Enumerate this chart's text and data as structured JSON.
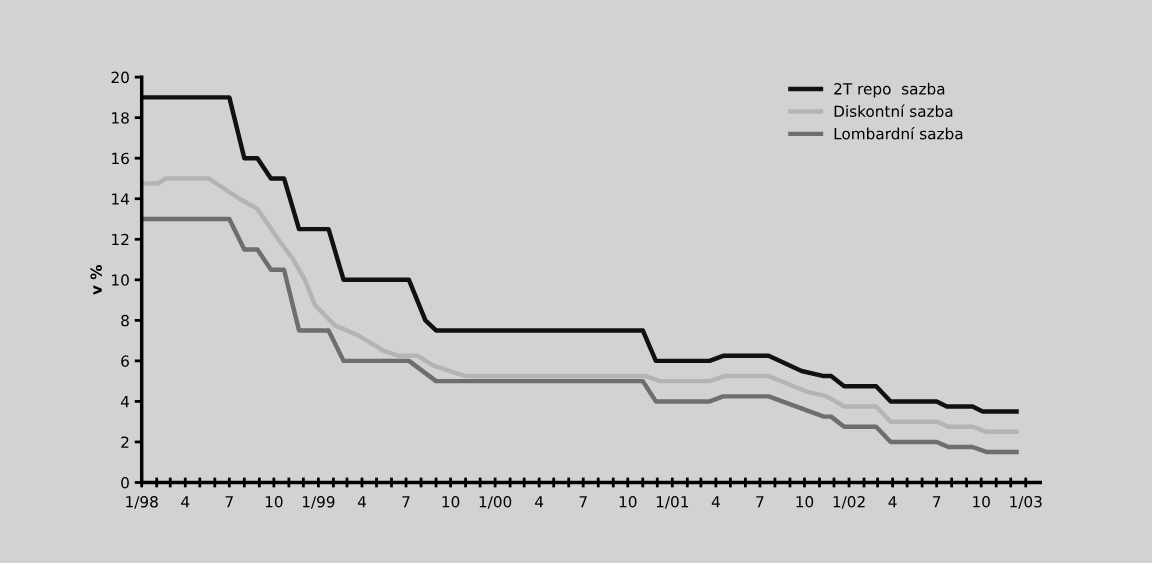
{
  "chart_data": {
    "type": "line",
    "ylabel": "v %",
    "xlim": [
      "1998-01-01",
      "2003-01-31"
    ],
    "ylim": [
      0,
      20
    ],
    "yticks": [
      0,
      2,
      4,
      6,
      8,
      10,
      12,
      14,
      16,
      18,
      20
    ],
    "xticks": [
      {
        "value": "1998-01",
        "label": "1/98"
      },
      {
        "value": "1998-02",
        "label": null
      },
      {
        "value": "1998-03",
        "label": null
      },
      {
        "value": "1998-04",
        "label": "4"
      },
      {
        "value": "1998-05",
        "label": null
      },
      {
        "value": "1998-06",
        "label": null
      },
      {
        "value": "1998-07",
        "label": "7"
      },
      {
        "value": "1998-08",
        "label": null
      },
      {
        "value": "1998-09",
        "label": null
      },
      {
        "value": "1998-10",
        "label": "10"
      },
      {
        "value": "1998-11",
        "label": null
      },
      {
        "value": "1998-12",
        "label": null
      },
      {
        "value": "1999-01",
        "label": "1/99"
      },
      {
        "value": "1999-02",
        "label": null
      },
      {
        "value": "1999-03",
        "label": null
      },
      {
        "value": "1999-04",
        "label": "4"
      },
      {
        "value": "1999-05",
        "label": null
      },
      {
        "value": "1999-06",
        "label": null
      },
      {
        "value": "1999-07",
        "label": "7"
      },
      {
        "value": "1999-08",
        "label": null
      },
      {
        "value": "1999-09",
        "label": null
      },
      {
        "value": "1999-10",
        "label": "10"
      },
      {
        "value": "1999-11",
        "label": null
      },
      {
        "value": "1999-12",
        "label": null
      },
      {
        "value": "2000-01",
        "label": "1/00"
      },
      {
        "value": "2000-02",
        "label": null
      },
      {
        "value": "2000-03",
        "label": null
      },
      {
        "value": "2000-04",
        "label": "4"
      },
      {
        "value": "2000-05",
        "label": null
      },
      {
        "value": "2000-06",
        "label": null
      },
      {
        "value": "2000-07",
        "label": "7"
      },
      {
        "value": "2000-08",
        "label": null
      },
      {
        "value": "2000-09",
        "label": null
      },
      {
        "value": "2000-10",
        "label": "10"
      },
      {
        "value": "2000-11",
        "label": null
      },
      {
        "value": "2000-12",
        "label": null
      },
      {
        "value": "2001-01",
        "label": "1/01"
      },
      {
        "value": "2001-02",
        "label": null
      },
      {
        "value": "2001-03",
        "label": null
      },
      {
        "value": "2001-04",
        "label": "4"
      },
      {
        "value": "2001-05",
        "label": null
      },
      {
        "value": "2001-06",
        "label": null
      },
      {
        "value": "2001-07",
        "label": "7"
      },
      {
        "value": "2001-08",
        "label": null
      },
      {
        "value": "2001-09",
        "label": null
      },
      {
        "value": "2001-10",
        "label": "10"
      },
      {
        "value": "2001-11",
        "label": null
      },
      {
        "value": "2001-12",
        "label": null
      },
      {
        "value": "2002-01",
        "label": "1/02"
      },
      {
        "value": "2002-02",
        "label": null
      },
      {
        "value": "2002-03",
        "label": null
      },
      {
        "value": "2002-04",
        "label": "4"
      },
      {
        "value": "2002-05",
        "label": null
      },
      {
        "value": "2002-06",
        "label": null
      },
      {
        "value": "2002-07",
        "label": "7"
      },
      {
        "value": "2002-08",
        "label": null
      },
      {
        "value": "2002-09",
        "label": null
      },
      {
        "value": "2002-10",
        "label": "10"
      },
      {
        "value": "2002-11",
        "label": null
      },
      {
        "value": "2002-12",
        "label": null
      },
      {
        "value": "2003-01",
        "label": "1/03"
      }
    ],
    "grid": false,
    "legend": "top right",
    "marker": "none",
    "line_style": "solid",
    "series": [
      {
        "name": "2T repo  sazba",
        "color": "#111111",
        "x": [
          "1998-01-01",
          "1998-07-01",
          "1998-08-01",
          "1998-08-28",
          "1998-09-25",
          "1998-10-22",
          "1998-11-22",
          "1999-01-22",
          "1999-02-22",
          "1999-07-07",
          "1999-08-10",
          "1999-09-01",
          "2000-11-01",
          "2000-11-28",
          "2001-03-19",
          "2001-04-16",
          "2001-07-19",
          "2001-09-25",
          "2001-11-10",
          "2001-11-25",
          "2001-12-22",
          "2002-02-26",
          "2002-03-28",
          "2002-07-01",
          "2002-07-22",
          "2002-09-13",
          "2002-10-04",
          "2002-12-13"
        ],
        "values": [
          19,
          19,
          16,
          16,
          15,
          15,
          12.5,
          12.5,
          10,
          10,
          8,
          7.5,
          7.5,
          6,
          6,
          6.25,
          6.25,
          5.5,
          5.25,
          5.25,
          4.75,
          4.75,
          4,
          4,
          3.75,
          3.75,
          3.5,
          3.5
        ]
      },
      {
        "name": "Diskontní sazba",
        "color": "#b4b4b4",
        "x": [
          "1998-01-01",
          "1998-02-04",
          "1998-02-19",
          "1998-05-19",
          "1998-07-22",
          "1998-08-28",
          "1998-10-10",
          "1998-11-10",
          "1998-12-04",
          "1998-12-25",
          "1999-02-04",
          "1999-03-25",
          "1999-05-16",
          "1999-06-16",
          "1999-07-25",
          "1999-08-28",
          "1999-11-01",
          "2000-11-07",
          "2000-12-07",
          "2001-03-19",
          "2001-04-19",
          "2001-07-19",
          "2001-10-04",
          "2001-11-16",
          "2001-12-22",
          "2002-02-26",
          "2002-03-28",
          "2002-07-01",
          "2002-07-25",
          "2002-09-13",
          "2002-10-13",
          "2002-12-13"
        ],
        "values": [
          14.75,
          14.75,
          15,
          15,
          14,
          13.5,
          12,
          11,
          10,
          8.75,
          7.75,
          7.25,
          6.5,
          6.25,
          6.25,
          5.75,
          5.25,
          5.25,
          5,
          5,
          5.25,
          5.25,
          4.5,
          4.25,
          3.75,
          3.75,
          3,
          3,
          2.75,
          2.75,
          2.5,
          2.5
        ]
      },
      {
        "name": "Lombardní sazba",
        "color": "#6e6e6e",
        "x": [
          "1998-01-01",
          "1998-07-01",
          "1998-08-01",
          "1998-08-28",
          "1998-09-25",
          "1998-10-22",
          "1998-11-22",
          "1999-01-22",
          "1999-02-22",
          "1999-07-07",
          "1999-09-01",
          "2000-11-01",
          "2000-11-28",
          "2001-03-19",
          "2001-04-16",
          "2001-07-19",
          "2001-11-10",
          "2001-11-25",
          "2001-12-22",
          "2002-02-26",
          "2002-03-28",
          "2002-07-01",
          "2002-07-25",
          "2002-09-13",
          "2002-10-13",
          "2002-12-13"
        ],
        "values": [
          13,
          13,
          11.5,
          11.5,
          10.5,
          10.5,
          7.5,
          7.5,
          6,
          6,
          5,
          5,
          4,
          4,
          4.25,
          4.25,
          3.25,
          3.25,
          2.75,
          2.75,
          2,
          2,
          1.75,
          1.75,
          1.5,
          1.5
        ]
      }
    ]
  }
}
